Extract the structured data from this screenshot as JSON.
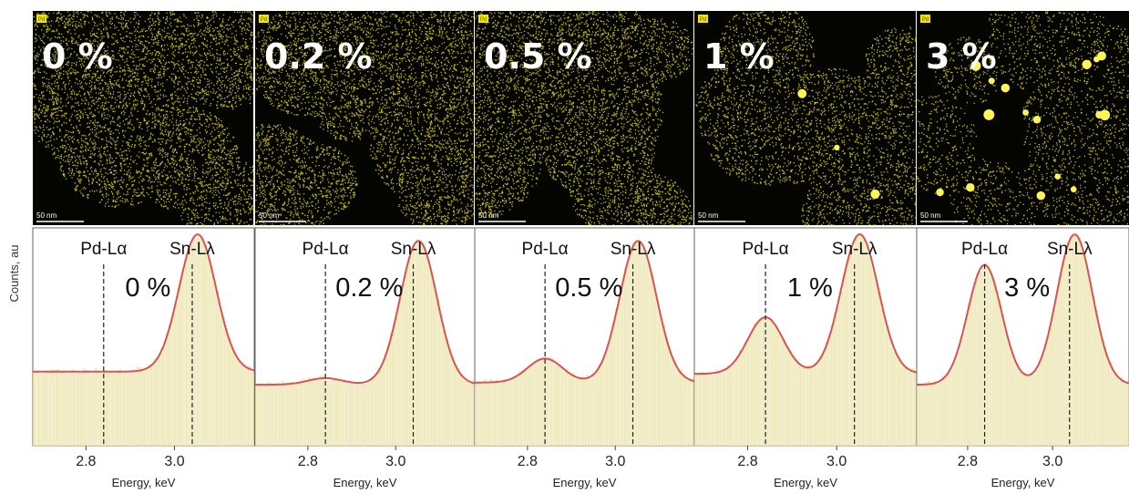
{
  "figure": {
    "ylabel": "Counts, au",
    "xlabel": "Energy, keV",
    "scale_bar_text": "50 nm",
    "map_tag": "Pd",
    "peak_labels": [
      "Pd-Lα",
      "Sn-Lλ"
    ],
    "colors": {
      "map_background": "#050500",
      "map_dots": "#e6dc1e",
      "histogram_fill": "#f4efc6",
      "fit_curve": "#d9534f",
      "marker_line": "#222222"
    }
  },
  "chart_data": [
    {
      "type": "bar",
      "panel_label": "0 %",
      "x_ticks": [
        2.8,
        3.0
      ],
      "xlim": [
        2.68,
        3.18
      ],
      "ylim": [
        0,
        1
      ],
      "markers": {
        "Pd-Lα": 2.84,
        "Sn-Lλ": 3.04
      },
      "fit_curve": {
        "baseline": 0.34,
        "pd_peak": 0.0,
        "sn_peak": 0.95
      }
    },
    {
      "type": "bar",
      "panel_label": "0.2 %",
      "x_ticks": [
        2.8,
        3.0
      ],
      "xlim": [
        2.68,
        3.18
      ],
      "ylim": [
        0,
        1
      ],
      "markers": {
        "Pd-Lα": 2.84,
        "Sn-Lλ": 3.04
      },
      "fit_curve": {
        "baseline": 0.28,
        "pd_peak": 0.03,
        "sn_peak": 0.92
      }
    },
    {
      "type": "bar",
      "panel_label": "0.5 %",
      "x_ticks": [
        2.8,
        3.0
      ],
      "xlim": [
        2.68,
        3.18
      ],
      "ylim": [
        0,
        1
      ],
      "markers": {
        "Pd-Lα": 2.84,
        "Sn-Lλ": 3.04
      },
      "fit_curve": {
        "baseline": 0.29,
        "pd_peak": 0.11,
        "sn_peak": 0.92
      }
    },
    {
      "type": "bar",
      "panel_label": "1 %",
      "x_ticks": [
        2.8,
        3.0
      ],
      "xlim": [
        2.68,
        3.18
      ],
      "ylim": [
        0,
        1
      ],
      "markers": {
        "Pd-Lα": 2.84,
        "Sn-Lλ": 3.04
      },
      "fit_curve": {
        "baseline": 0.33,
        "pd_peak": 0.26,
        "sn_peak": 0.95
      }
    },
    {
      "type": "bar",
      "panel_label": "3 %",
      "x_ticks": [
        2.8,
        3.0
      ],
      "xlim": [
        2.68,
        3.18
      ],
      "ylim": [
        0,
        1
      ],
      "markers": {
        "Pd-Lα": 2.84,
        "Sn-Lλ": 3.04
      },
      "fit_curve": {
        "baseline": 0.28,
        "pd_peak": 0.55,
        "sn_peak": 0.95
      }
    }
  ]
}
